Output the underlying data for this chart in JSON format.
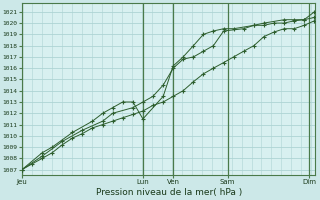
{
  "title": "Pression niveau de la mer( hPa )",
  "bg_color": "#cce8e8",
  "plot_bg_color": "#d8f0f0",
  "grid_color": "#aed4d4",
  "vline_color": "#4a7a4a",
  "line_color": "#2d5e2d",
  "ylim": [
    1006.5,
    1021.8
  ],
  "yticks": [
    1007,
    1008,
    1009,
    1010,
    1011,
    1012,
    1013,
    1014,
    1015,
    1016,
    1017,
    1018,
    1019,
    1020,
    1021
  ],
  "x_day_labels": [
    {
      "label": "Jeu",
      "x": 0.0
    },
    {
      "label": "Lun",
      "x": 4.0
    },
    {
      "label": "Ven",
      "x": 5.0
    },
    {
      "label": "Sam",
      "x": 6.8
    },
    {
      "label": "Dim",
      "x": 9.5
    }
  ],
  "x_vlines": [
    0.0,
    4.0,
    5.0,
    6.8,
    9.5
  ],
  "xlim": [
    0.0,
    9.7
  ],
  "line1_smooth": {
    "x": [
      0.0,
      0.33,
      0.67,
      1.0,
      1.33,
      1.67,
      2.0,
      2.33,
      2.67,
      3.0,
      3.33,
      3.67,
      4.0,
      4.33,
      4.67,
      5.0,
      5.33,
      5.67,
      6.0,
      6.33,
      6.67,
      7.0,
      7.33,
      7.67,
      8.0,
      8.33,
      8.67,
      9.0,
      9.33,
      9.67
    ],
    "y": [
      1007.0,
      1007.5,
      1008.0,
      1008.5,
      1009.2,
      1009.8,
      1010.2,
      1010.7,
      1011.0,
      1011.3,
      1011.6,
      1011.9,
      1012.2,
      1012.7,
      1013.0,
      1013.5,
      1014.0,
      1014.8,
      1015.5,
      1016.0,
      1016.5,
      1017.0,
      1017.5,
      1018.0,
      1018.8,
      1019.2,
      1019.5,
      1019.5,
      1019.8,
      1020.2
    ]
  },
  "line2_markers": {
    "x": [
      0.0,
      0.67,
      1.33,
      2.0,
      2.67,
      3.0,
      3.67,
      4.0,
      4.33,
      4.67,
      5.0,
      5.33,
      5.67,
      6.0,
      6.33,
      6.67,
      7.33,
      7.67,
      8.0,
      8.67,
      9.0,
      9.33,
      9.67
    ],
    "y": [
      1007.0,
      1008.2,
      1009.5,
      1010.5,
      1011.3,
      1012.0,
      1012.5,
      1013.0,
      1013.5,
      1014.5,
      1016.0,
      1016.8,
      1017.0,
      1017.5,
      1018.0,
      1019.3,
      1019.5,
      1019.8,
      1020.0,
      1020.3,
      1020.3,
      1020.3,
      1021.0
    ]
  },
  "line3_markers": {
    "x": [
      0.0,
      0.67,
      1.0,
      1.67,
      2.33,
      2.67,
      3.0,
      3.33,
      3.67,
      4.0,
      4.67,
      5.0,
      5.33,
      5.67,
      6.0,
      6.33,
      6.67,
      7.0,
      7.67,
      8.0,
      8.33,
      8.67,
      9.0,
      9.33,
      9.67
    ],
    "y": [
      1007.0,
      1008.5,
      1009.0,
      1010.3,
      1011.3,
      1012.0,
      1012.5,
      1013.0,
      1013.0,
      1011.5,
      1013.5,
      1016.2,
      1017.0,
      1018.0,
      1019.0,
      1019.3,
      1019.5,
      1019.5,
      1019.8,
      1019.8,
      1020.0,
      1020.0,
      1020.2,
      1020.3,
      1020.5
    ]
  }
}
